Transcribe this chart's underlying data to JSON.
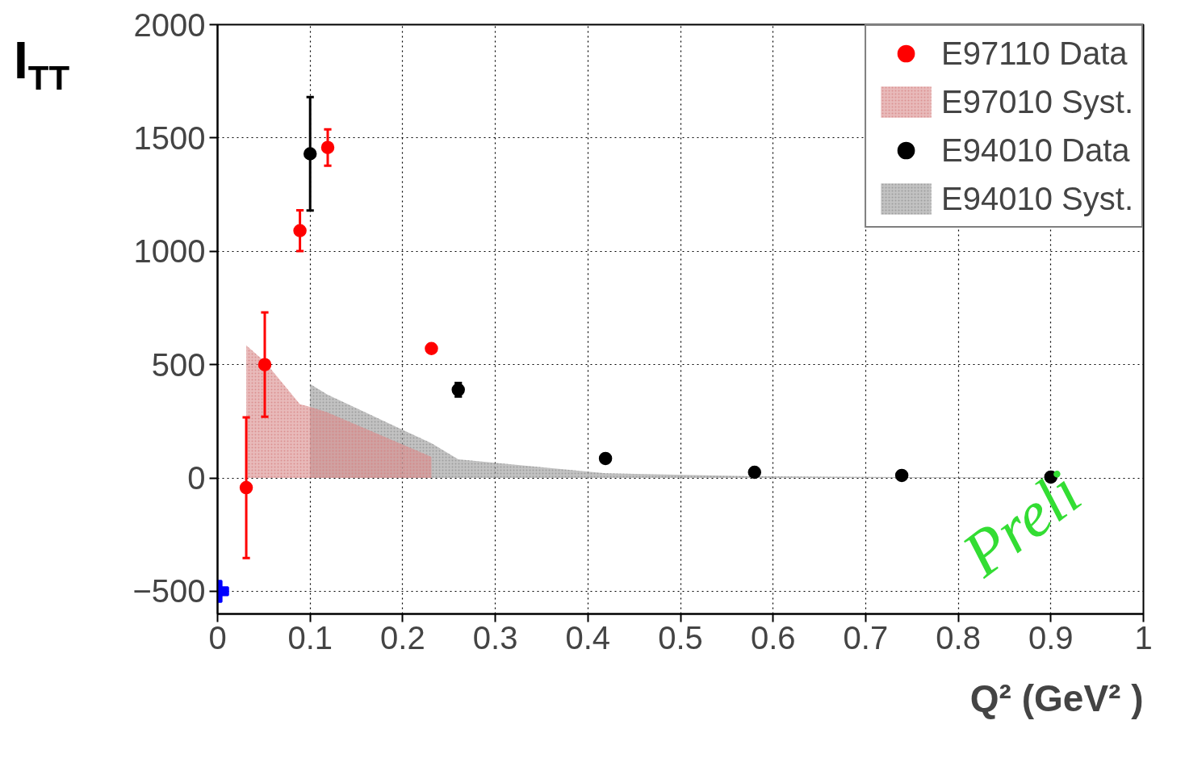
{
  "chart_data": {
    "type": "scatter",
    "xlabel": "Q² (GeV² )",
    "ylabel": "I$_{TT}$",
    "xlim": [
      0,
      1
    ],
    "ylim": [
      -600,
      2000
    ],
    "xticks": [
      0,
      0.1,
      0.2,
      0.3,
      0.4,
      0.5,
      0.6,
      0.7,
      0.8,
      0.9,
      1
    ],
    "yticks": [
      {
        "value": -500,
        "label": "−500"
      },
      0,
      500,
      1000,
      1500,
      2000
    ],
    "grid": true,
    "legend": "top right",
    "annotations": [
      "Preli"
    ],
    "series": [
      {
        "name": "E97110 Data",
        "marker": "circle",
        "color": "#ff0000",
        "x": [
          0.031,
          0.051,
          0.089,
          0.119,
          0.231
        ],
        "values": [
          -43,
          500,
          1091,
          1458,
          571
        ],
        "errors": [
          310,
          230,
          90,
          80,
          15
        ]
      },
      {
        "name": "E97010 Syst.",
        "type": "area",
        "color": "#d98c8c",
        "x": [
          0.031,
          0.051,
          0.089,
          0.1,
          0.119,
          0.231
        ],
        "values": [
          585,
          513,
          325,
          314,
          289,
          93
        ]
      },
      {
        "name": "E94010 Data",
        "marker": "circle",
        "color": "#000000",
        "x": [
          0.1,
          0.26,
          0.419,
          0.58,
          0.739,
          0.9
        ],
        "values": [
          1430,
          389,
          86,
          25,
          11,
          4
        ],
        "errors": [
          250,
          30,
          null,
          null,
          null,
          null
        ]
      },
      {
        "name": "E94010 Syst.",
        "type": "area",
        "color": "#999999",
        "x": [
          0.1,
          0.119,
          0.231,
          0.26,
          0.419,
          0.58,
          0.739,
          0.9
        ],
        "values": [
          414,
          367,
          153,
          82,
          21,
          7,
          4,
          2
        ]
      },
      {
        "marker": "cross",
        "color": "#0000ff",
        "x": [
          0
        ],
        "values": [
          -500
        ]
      }
    ]
  }
}
